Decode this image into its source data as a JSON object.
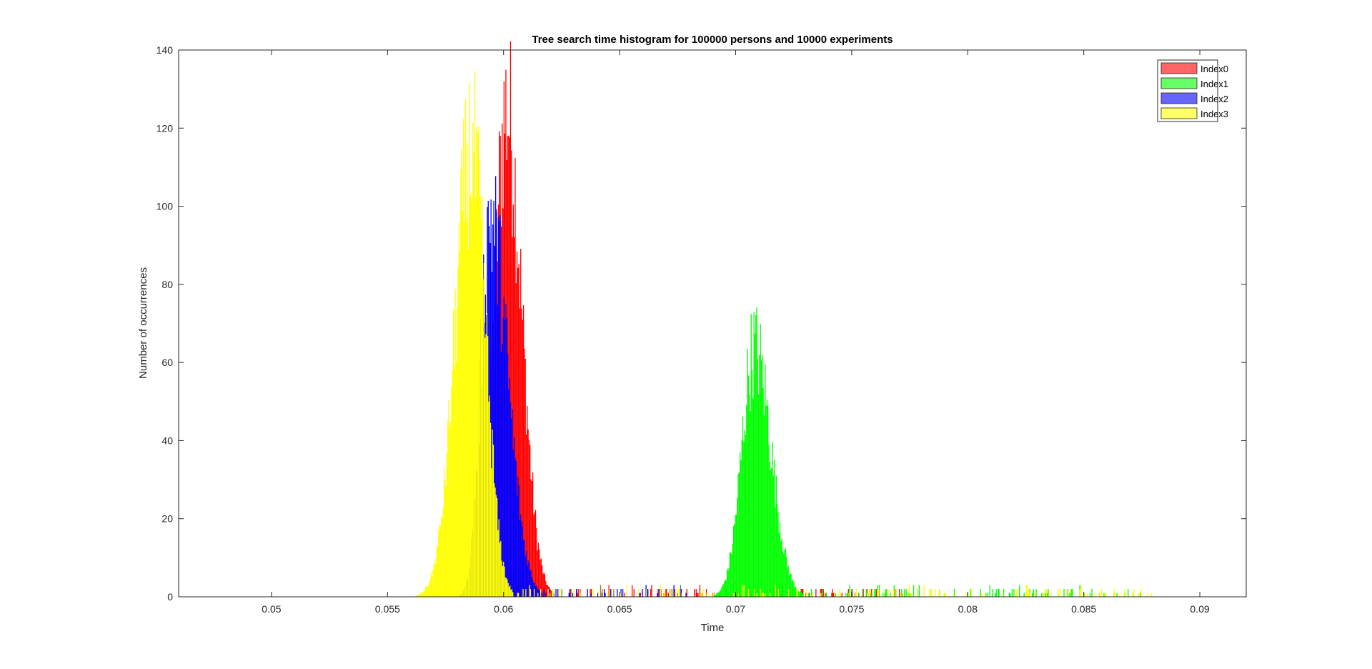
{
  "chart_data": {
    "type": "bar",
    "title": "Tree search time histogram for 100000 persons and 10000 experiments",
    "xlabel": "Time",
    "ylabel": "Number of occurrences",
    "xlim": [
      0.046,
      0.092
    ],
    "ylim": [
      0,
      140
    ],
    "xticks": [
      0.05,
      0.055,
      0.06,
      0.065,
      0.07,
      0.075,
      0.08,
      0.085,
      0.09
    ],
    "yticks": [
      0,
      20,
      40,
      60,
      80,
      100,
      120,
      140
    ],
    "xtick_labels": [
      "0.05",
      "0.055",
      "0.06",
      "0.065",
      "0.07",
      "0.075",
      "0.08",
      "0.085",
      "0.09"
    ],
    "ytick_labels": [
      "0",
      "20",
      "40",
      "60",
      "80",
      "100",
      "120",
      "140"
    ],
    "legend_position": "top-right",
    "grid": false,
    "bin_width": 4e-05,
    "series": [
      {
        "name": "Index0",
        "color": "#ff0000",
        "legend_color": "#ff6666",
        "mean": 0.0601,
        "sd_left": 0.0005,
        "sd_right": 0.00065,
        "peak": 137,
        "tail_until": 0.0775
      },
      {
        "name": "Index1",
        "color": "#00ff00",
        "legend_color": "#66ff66",
        "mean": 0.0708,
        "sd_left": 0.00055,
        "sd_right": 0.0007,
        "peak": 70,
        "tail_until": 0.0878
      },
      {
        "name": "Index2",
        "color": "#0000ff",
        "legend_color": "#6666ff",
        "mean": 0.0594,
        "sd_left": 0.0004,
        "sd_right": 0.00075,
        "peak": 107,
        "tail_until": 0.068
      },
      {
        "name": "Index3",
        "color": "#ffff00",
        "legend_color": "#ffff66",
        "mean": 0.0586,
        "sd_left": 0.0007,
        "sd_right": 0.0006,
        "peak": 126,
        "tail_until": 0.0879
      }
    ]
  }
}
